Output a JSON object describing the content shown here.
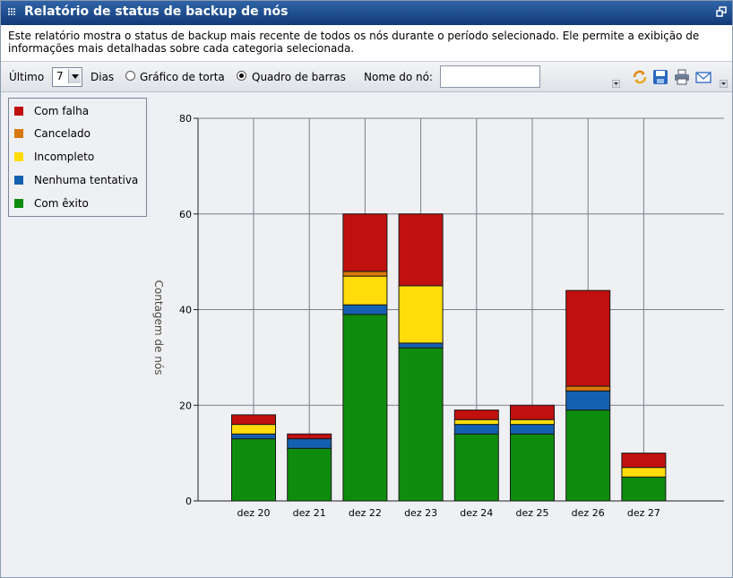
{
  "window": {
    "title": "Relatório de status de backup de nós"
  },
  "description": "Este relatório mostra o status de backup mais recente de todos os nós durante o período selecionado. Ele permite a exibição de informações mais detalhadas sobre cada categoria selecionada.",
  "toolbar": {
    "last_label": "Último",
    "days_value": "7",
    "days_label": "Dias",
    "pie_label": "Gráfico de torta",
    "bar_label": "Quadro de barras",
    "node_label": "Nome do nó:",
    "node_value": "",
    "selected_view": "bar"
  },
  "colors": {
    "title_bar": "#1e4e8f",
    "failed": "#c0100f",
    "cancelled": "#d8780a",
    "incomplete": "#ffdc0a",
    "not_attempted": "#1460b0",
    "success": "#0e8c0e"
  },
  "legend": {
    "items": [
      {
        "label": "Com falha",
        "color": "#c0100f"
      },
      {
        "label": "Cancelado",
        "color": "#d8780a"
      },
      {
        "label": "Incompleto",
        "color": "#ffdc0a"
      },
      {
        "label": "Nenhuma tentativa",
        "color": "#1460b0"
      },
      {
        "label": "Com êxito",
        "color": "#0e8c0e"
      }
    ]
  },
  "chart_data": {
    "type": "bar",
    "stacked": true,
    "ylabel": "Contagem de nós",
    "xlabel": "",
    "ylim": [
      0,
      80
    ],
    "yticks": [
      0,
      20,
      40,
      60,
      80
    ],
    "grid": true,
    "categories": [
      "dez 20",
      "dez 21",
      "dez 22",
      "dez 23",
      "dez 24",
      "dez 25",
      "dez 26",
      "dez 27"
    ],
    "series": [
      {
        "name": "Com êxito",
        "color": "#0e8c0e",
        "values": [
          13,
          11,
          39,
          32,
          14,
          14,
          19,
          5
        ]
      },
      {
        "name": "Nenhuma tentativa",
        "color": "#1460b0",
        "values": [
          1,
          2,
          2,
          1,
          2,
          2,
          4,
          0
        ]
      },
      {
        "name": "Incompleto",
        "color": "#ffdc0a",
        "values": [
          2,
          0,
          6,
          12,
          1,
          1,
          0,
          2
        ]
      },
      {
        "name": "Cancelado",
        "color": "#d8780a",
        "values": [
          0,
          0,
          1,
          0,
          0,
          0,
          1,
          0
        ]
      },
      {
        "name": "Com falha",
        "color": "#c0100f",
        "values": [
          2,
          1,
          12,
          15,
          2,
          3,
          20,
          3
        ]
      }
    ]
  }
}
